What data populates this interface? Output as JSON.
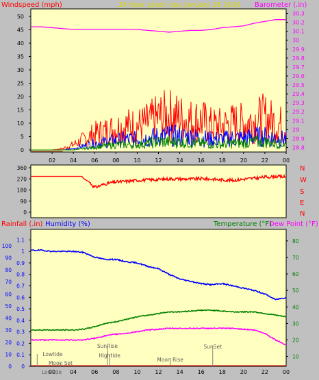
{
  "title": "24 hour graph day  January 16 2019",
  "colors": {
    "background": "#c0c0c0",
    "plot": "#ffffc0",
    "wind": "#ff0000",
    "gust": "#0000ff",
    "avg": "#008000",
    "barometer": "#ff00ff",
    "direction": "#ff0000",
    "rain": "#ff0000",
    "humidity": "#0000ff",
    "temperature": "#008000",
    "dewpoint": "#ff00ff",
    "axis": "#000000"
  },
  "panel1": {
    "left_label": "Windspeed (mph)",
    "right_label": "Barometer (.in)"
  },
  "panel2": {
    "compass": [
      "N",
      "W",
      "S",
      "E",
      "N"
    ]
  },
  "panel3": {
    "rain_label": "Rainfall (.in)",
    "humidity_label": "Humidity (%)",
    "temp_label": "Temperature (°F)",
    "dew_label": "Dew Point (°F)"
  },
  "events": [
    {
      "label": "Lowtide",
      "hour": 0.6
    },
    {
      "label": "Moon Set",
      "hour": 2.8
    },
    {
      "label": "SunRise",
      "hour": 7.2
    },
    {
      "label": "Hightide",
      "hour": 7.4
    },
    {
      "label": "Moon Rise",
      "hour": 13.1
    },
    {
      "label": "SunSet",
      "hour": 17.1
    },
    {
      "label": "Lowtide",
      "hour": 0.0
    }
  ],
  "chart_data": [
    {
      "type": "line",
      "name": "wind-barometer",
      "x_ticks": [
        "02",
        "04",
        "06",
        "08",
        "10",
        "12",
        "14",
        "16",
        "18",
        "20",
        "22",
        "00"
      ],
      "y_left_ticks": [
        0,
        5,
        10,
        15,
        20,
        25,
        30,
        35,
        40,
        45,
        50
      ],
      "y_right_ticks": [
        "28.8",
        "28.9",
        "29",
        "29.1",
        "29.2",
        "29.3",
        "29.4",
        "29.5",
        "29.6",
        "29.7",
        "29.8",
        "29.9",
        "30",
        "30.1",
        "30.2",
        "30.3"
      ],
      "ylim_left": [
        0,
        50
      ],
      "ylim_right": [
        28.75,
        30.35
      ],
      "series": [
        {
          "key": "barometer",
          "axis": "right",
          "x": [
            0,
            1,
            2,
            3,
            4,
            5,
            6,
            7,
            8,
            9,
            10,
            11,
            12,
            13,
            14,
            15,
            16,
            17,
            18,
            19,
            20,
            21,
            22,
            23,
            24
          ],
          "values": [
            30.15,
            30.15,
            30.14,
            30.13,
            30.12,
            30.12,
            30.12,
            30.12,
            30.12,
            30.12,
            30.12,
            30.11,
            30.1,
            30.09,
            30.1,
            30.11,
            30.11,
            30.12,
            30.14,
            30.15,
            30.16,
            30.19,
            30.21,
            30.23,
            30.23
          ]
        },
        {
          "key": "wind",
          "axis": "left",
          "x": [
            0,
            1,
            2,
            3,
            4,
            5,
            6,
            7,
            8,
            9,
            10,
            11,
            12,
            13,
            14,
            15,
            16,
            17,
            18,
            19,
            20,
            21,
            22,
            23,
            24
          ],
          "values": [
            0,
            0,
            0,
            0.5,
            2,
            4,
            6,
            7,
            8,
            9,
            9,
            10,
            12,
            13,
            12,
            11,
            11,
            9,
            9,
            10,
            10,
            11,
            12,
            10,
            9
          ]
        },
        {
          "key": "gust",
          "axis": "left",
          "x": [
            0,
            1,
            2,
            3,
            4,
            5,
            6,
            7,
            8,
            9,
            10,
            11,
            12,
            13,
            14,
            15,
            16,
            17,
            18,
            19,
            20,
            21,
            22,
            23,
            24
          ],
          "values": [
            0,
            0,
            0,
            0,
            0.5,
            1.5,
            2.5,
            3,
            3.5,
            4,
            4,
            4.5,
            5,
            5.5,
            5,
            5,
            4.5,
            4,
            4,
            4.5,
            4.5,
            5,
            5,
            4.5,
            4
          ]
        },
        {
          "key": "avg",
          "axis": "left",
          "x": [
            0,
            1,
            2,
            3,
            4,
            5,
            6,
            7,
            8,
            9,
            10,
            11,
            12,
            13,
            14,
            15,
            16,
            17,
            18,
            19,
            20,
            21,
            22,
            23,
            24
          ],
          "values": [
            0,
            0,
            0,
            0,
            0,
            0.5,
            1,
            1.5,
            2,
            2,
            2,
            2.5,
            3,
            3,
            3,
            2.5,
            2.5,
            2,
            2,
            2.5,
            2.5,
            3,
            3,
            2.5,
            2
          ]
        }
      ]
    },
    {
      "type": "line",
      "name": "wind-direction",
      "y_ticks": [
        0,
        90,
        180,
        270,
        360
      ],
      "ylim": [
        0,
        360
      ],
      "series": [
        {
          "key": "direction",
          "x": [
            0,
            1,
            2,
            3,
            4,
            4.8,
            5,
            5.5,
            6,
            6.5,
            7,
            8,
            9,
            10,
            11,
            12,
            13,
            14,
            15,
            16,
            17,
            18,
            19,
            20,
            21,
            22,
            23,
            24
          ],
          "values": [
            290,
            290,
            290,
            290,
            290,
            290,
            270,
            245,
            200,
            215,
            230,
            245,
            250,
            258,
            262,
            265,
            270,
            270,
            268,
            272,
            268,
            262,
            258,
            268,
            275,
            285,
            290,
            285
          ]
        }
      ]
    },
    {
      "type": "line",
      "name": "temp-humidity-rain",
      "y_rain_ticks": [
        "0",
        "0.1",
        "0.2",
        "0.3",
        "0.4",
        "0.5",
        "0.6",
        "0.7",
        "0.8",
        "0.9",
        "1",
        "1.1"
      ],
      "y_humidity_ticks": [
        "0",
        "10",
        "20",
        "30",
        "40",
        "50",
        "60",
        "70",
        "80",
        "90",
        "100"
      ],
      "y_temp_ticks": [
        "10",
        "20",
        "30",
        "40",
        "50",
        "60",
        "70",
        "80"
      ],
      "ylim_rain": [
        0,
        1.15
      ],
      "ylim_temp": [
        4,
        87
      ],
      "series": [
        {
          "key": "humidity",
          "axis": "rain",
          "x": [
            0,
            1,
            2,
            3,
            4,
            5,
            6,
            7,
            8,
            9,
            10,
            11,
            12,
            13,
            14,
            15,
            16,
            17,
            18,
            19,
            20,
            21,
            22,
            23,
            24
          ],
          "values": [
            1.01,
            1.01,
            1.0,
            1.0,
            1.0,
            0.99,
            0.95,
            0.93,
            0.93,
            0.91,
            0.9,
            0.87,
            0.85,
            0.8,
            0.76,
            0.74,
            0.72,
            0.71,
            0.72,
            0.7,
            0.68,
            0.66,
            0.63,
            0.58,
            0.6
          ]
        },
        {
          "key": "temperature",
          "axis": "temp",
          "x": [
            0,
            1,
            2,
            3,
            4,
            5,
            6,
            7,
            8,
            9,
            10,
            11,
            12,
            13,
            14,
            15,
            16,
            17,
            18,
            19,
            20,
            21,
            22,
            23,
            24
          ],
          "values": [
            26,
            26,
            26,
            26,
            26,
            26.5,
            28,
            30,
            31,
            32.5,
            34,
            35,
            36,
            37,
            37,
            37.5,
            38,
            38,
            37.5,
            37,
            37,
            37,
            36,
            35,
            34
          ]
        },
        {
          "key": "dewpoint",
          "axis": "temp",
          "x": [
            0,
            1,
            2,
            3,
            4,
            5,
            6,
            7,
            8,
            9,
            10,
            11,
            12,
            13,
            14,
            15,
            16,
            17,
            18,
            19,
            20,
            21,
            22,
            23,
            24
          ],
          "values": [
            20,
            20,
            20,
            20,
            20,
            20,
            21,
            22.5,
            23.5,
            24,
            25,
            26,
            26.5,
            27,
            27,
            27,
            27,
            27,
            27,
            27,
            26.5,
            26,
            24,
            20,
            17
          ]
        },
        {
          "key": "rain",
          "axis": "rain",
          "x": [
            0,
            24
          ],
          "values": [
            0,
            0
          ]
        }
      ]
    }
  ]
}
